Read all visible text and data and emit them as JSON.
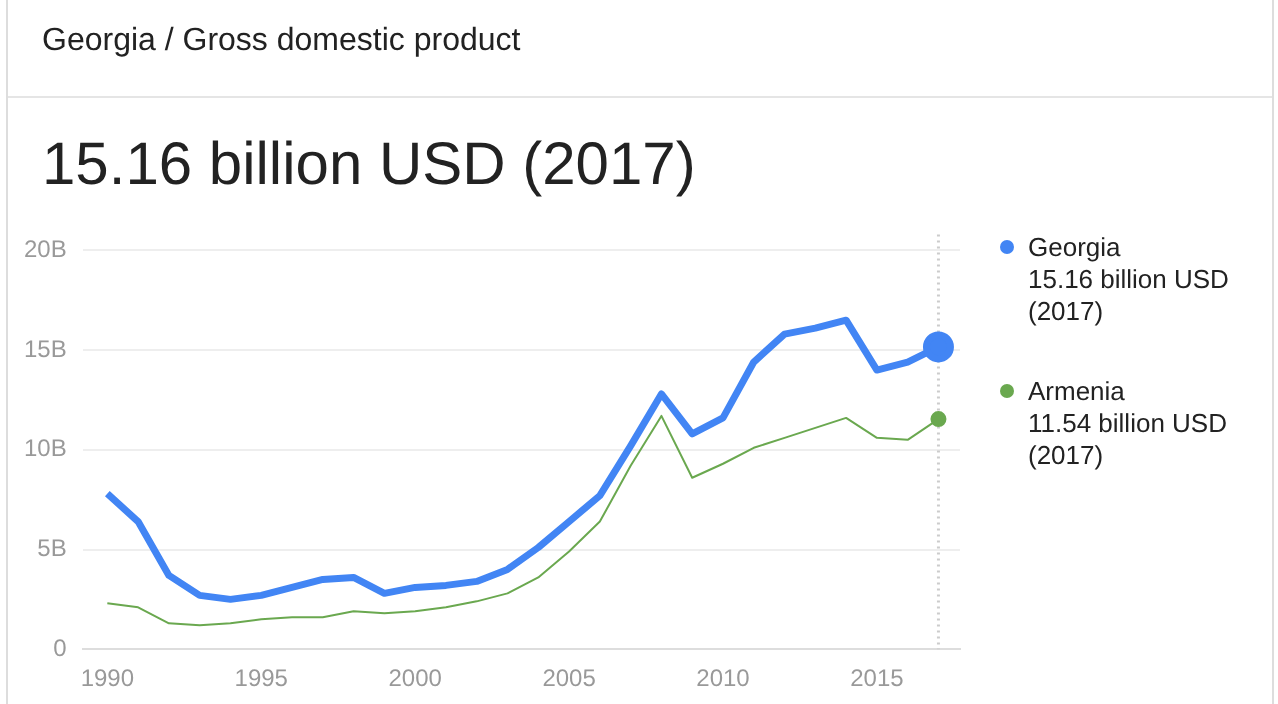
{
  "chart_data": {
    "type": "line",
    "subtitle": "Georgia / Gross domestic product",
    "title": "15.16 billion USD (2017)",
    "x": [
      1990,
      1991,
      1992,
      1993,
      1994,
      1995,
      1996,
      1997,
      1998,
      1999,
      2000,
      2001,
      2002,
      2003,
      2004,
      2005,
      2006,
      2007,
      2008,
      2009,
      2010,
      2011,
      2012,
      2013,
      2014,
      2015,
      2016,
      2017
    ],
    "series": [
      {
        "name": "Georgia",
        "color": "#4285f4",
        "values": [
          7.8,
          6.4,
          3.7,
          2.7,
          2.5,
          2.7,
          3.1,
          3.5,
          3.6,
          2.8,
          3.1,
          3.2,
          3.4,
          4.0,
          5.1,
          6.4,
          7.7,
          10.2,
          12.8,
          10.8,
          11.6,
          14.4,
          15.8,
          16.1,
          16.5,
          14.0,
          14.4,
          15.16
        ]
      },
      {
        "name": "Armenia",
        "color": "#6aa84f",
        "values": [
          2.3,
          2.1,
          1.3,
          1.2,
          1.3,
          1.5,
          1.6,
          1.6,
          1.9,
          1.8,
          1.9,
          2.1,
          2.4,
          2.8,
          3.6,
          4.9,
          6.4,
          9.2,
          11.7,
          8.6,
          9.3,
          10.1,
          10.6,
          11.1,
          11.6,
          10.6,
          10.5,
          11.54
        ]
      }
    ],
    "annotations": [
      "15.16 billion USD (2017)",
      "11.54 billion USD (2017)"
    ],
    "xlim": [
      1989.2,
      2017.7
    ],
    "xticks": [
      1990,
      1995,
      2000,
      2005,
      2010,
      2015
    ],
    "ylim": [
      0,
      20
    ],
    "yticks": [
      {
        "value": 0,
        "label": "0"
      },
      {
        "value": 5,
        "label": "5B"
      },
      {
        "value": 10,
        "label": "10B"
      },
      {
        "value": 15,
        "label": "15B"
      },
      {
        "value": 20,
        "label": "20B"
      }
    ],
    "ref_lines": [
      {
        "axis": "x",
        "value": 2017,
        "line_style": "dotted",
        "color": "#cccccc"
      }
    ],
    "grid": "y",
    "legend": "right"
  }
}
